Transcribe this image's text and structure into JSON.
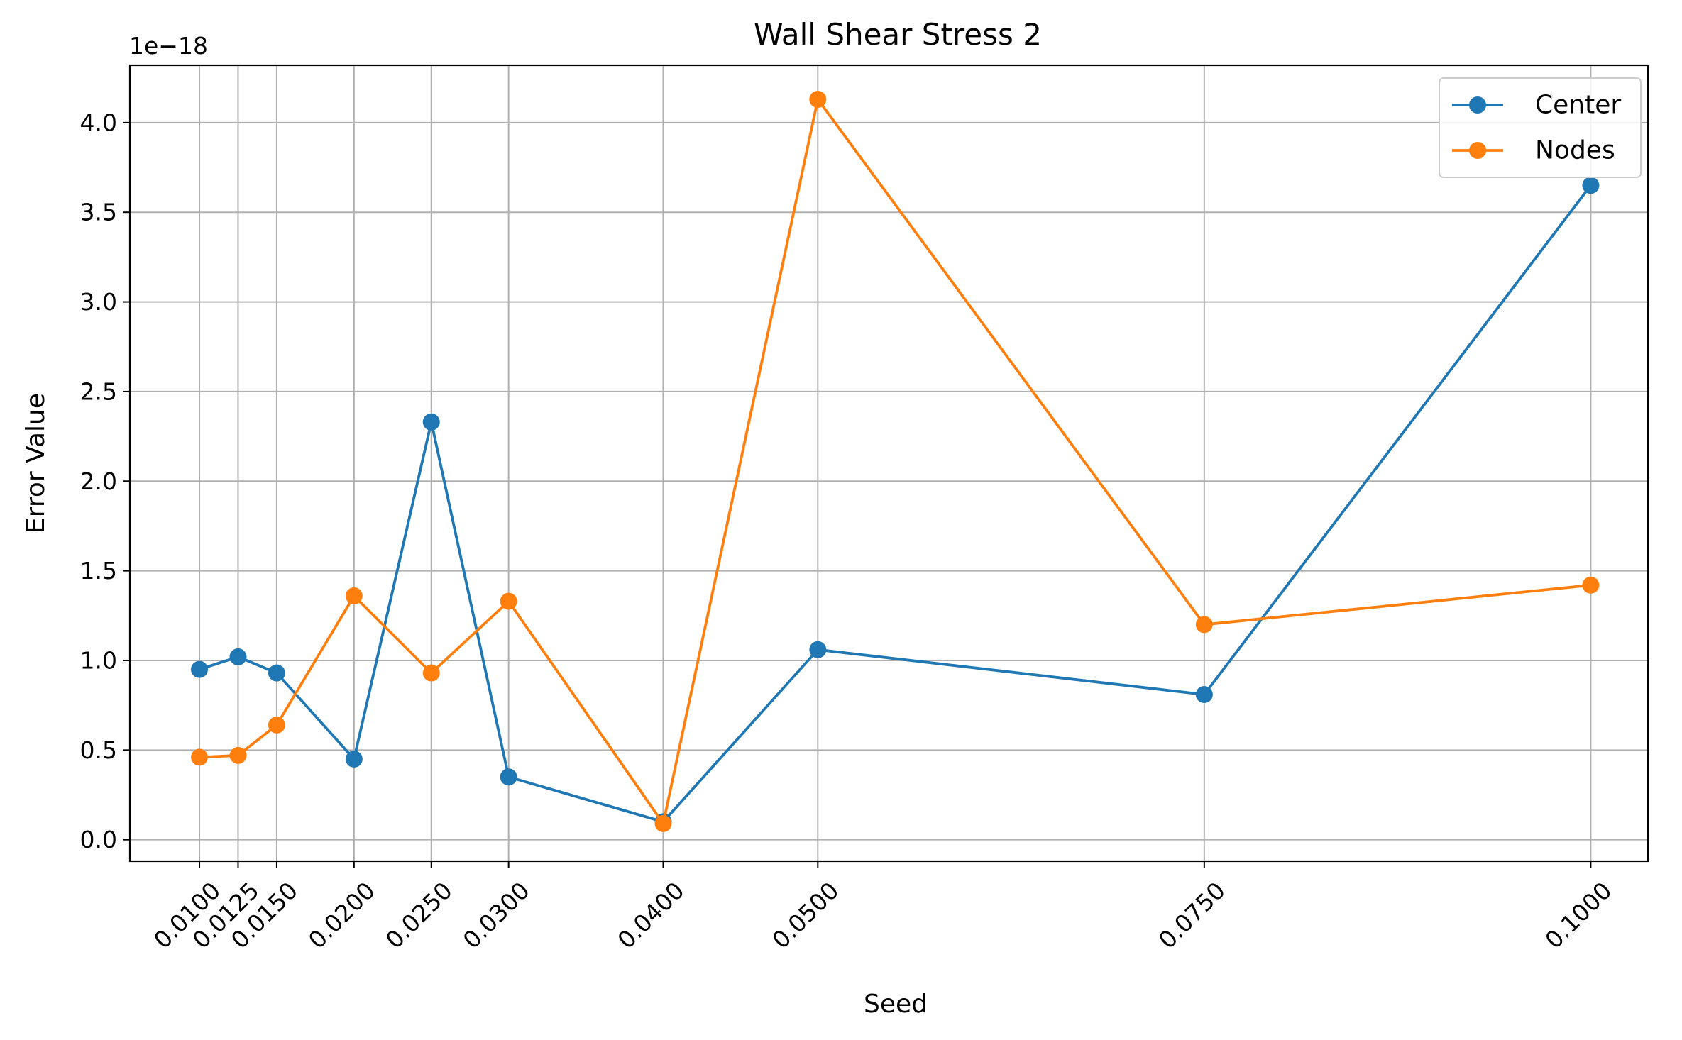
{
  "chart_data": {
    "type": "line",
    "title": "Wall Shear Stress 2",
    "xlabel": "Seed",
    "ylabel": "Error Value",
    "y_offset_label": "1e−18",
    "x": [
      0.01,
      0.0125,
      0.015,
      0.02,
      0.025,
      0.03,
      0.04,
      0.05,
      0.075,
      0.1
    ],
    "x_tick_labels": [
      "0.0100",
      "0.0125",
      "0.0150",
      "0.0200",
      "0.0250",
      "0.0300",
      "0.0400",
      "0.0500",
      "0.0750",
      "0.1000"
    ],
    "y_ticks": [
      0.0,
      0.5,
      1.0,
      1.5,
      2.0,
      2.5,
      3.0,
      3.5,
      4.0
    ],
    "y_tick_labels": [
      "0.0",
      "0.5",
      "1.0",
      "1.5",
      "2.0",
      "2.5",
      "3.0",
      "3.5",
      "4.0"
    ],
    "xlim": [
      0.0055,
      0.1037
    ],
    "ylim": [
      -0.12,
      4.32
    ],
    "grid": true,
    "legend_position": "top-right",
    "series": [
      {
        "name": "Center",
        "color": "#1f77b4",
        "marker": "circle",
        "values": [
          0.95,
          1.02,
          0.93,
          0.45,
          2.33,
          0.35,
          0.1,
          1.06,
          0.81,
          3.65
        ]
      },
      {
        "name": "Nodes",
        "color": "#ff7f0e",
        "marker": "circle",
        "values": [
          0.46,
          0.47,
          0.64,
          1.36,
          0.93,
          1.33,
          0.09,
          4.13,
          1.2,
          1.42
        ]
      }
    ]
  }
}
